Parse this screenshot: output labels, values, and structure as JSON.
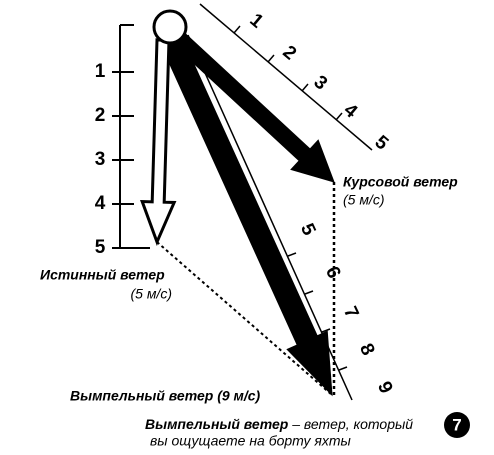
{
  "vertical_scale": [
    "1",
    "2",
    "3",
    "4",
    "5"
  ],
  "course_scale": [
    "1",
    "2",
    "3",
    "4",
    "5"
  ],
  "apparent_scale": [
    "5",
    "6",
    "7",
    "8",
    "9"
  ],
  "course_wind": {
    "name": "Курсовой ветер",
    "speed": "(5 м/с)"
  },
  "true_wind": {
    "name": "Истинный ветер",
    "speed": "(5 м/с)"
  },
  "apparent_wind": {
    "label": "Вымпельный ветер (9 м/с)"
  },
  "caption": {
    "term": "Вымпельный ветер",
    "definition_1": " – ветер, который",
    "definition_2": "вы ощущаете на борту яхты"
  },
  "badge": "7"
}
